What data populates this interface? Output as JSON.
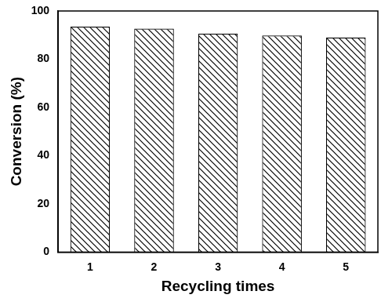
{
  "chart_data": {
    "type": "bar",
    "x_label": "Recycling times",
    "y_label": "Conversion (%)",
    "categories": [
      "1",
      "2",
      "3",
      "4",
      "5"
    ],
    "values": [
      93.5,
      92.7,
      90.6,
      89.8,
      89.0
    ],
    "color": "#000000",
    "ylim": [
      0,
      100
    ],
    "yticks": [
      0,
      20,
      40,
      60,
      80,
      100
    ],
    "grid": false
  }
}
